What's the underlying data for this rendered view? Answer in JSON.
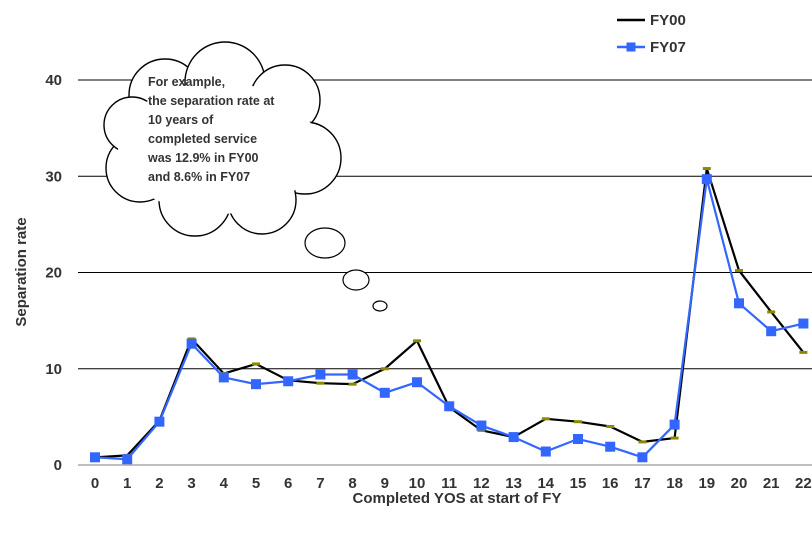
{
  "chart_data": {
    "type": "line",
    "xlabel": "Completed YOS at start of FY",
    "ylabel": "Separation rate",
    "ylim": [
      0,
      40
    ],
    "yticks": [
      0,
      10,
      20,
      30,
      40
    ],
    "grid": "horizontal",
    "legend_position": "top-right",
    "x": [
      0,
      1,
      2,
      3,
      4,
      5,
      6,
      7,
      8,
      9,
      10,
      11,
      12,
      13,
      14,
      15,
      16,
      17,
      18,
      19,
      20,
      21,
      22
    ],
    "series": [
      {
        "name": "FY00",
        "color": "#000000",
        "marker": "dash",
        "values": [
          0.8,
          1.0,
          4.6,
          13.1,
          9.5,
          10.5,
          8.8,
          8.5,
          8.4,
          10.0,
          12.9,
          6.0,
          3.6,
          2.9,
          4.8,
          4.5,
          4.0,
          2.4,
          2.8,
          30.8,
          20.2,
          15.9,
          11.7
        ]
      },
      {
        "name": "FY07",
        "color": "#3366ff",
        "marker": "square",
        "values": [
          0.8,
          0.6,
          4.5,
          12.6,
          9.1,
          8.4,
          8.7,
          9.4,
          9.4,
          7.5,
          8.6,
          6.1,
          4.1,
          2.9,
          1.4,
          2.7,
          1.9,
          0.8,
          4.2,
          29.7,
          16.8,
          13.9,
          14.7
        ]
      }
    ],
    "annotation": {
      "lines": [
        "For example,",
        "the separation rate at",
        "10 years of",
        "completed service",
        "was 12.9% in FY00",
        "and 8.6% in FY07"
      ]
    }
  }
}
